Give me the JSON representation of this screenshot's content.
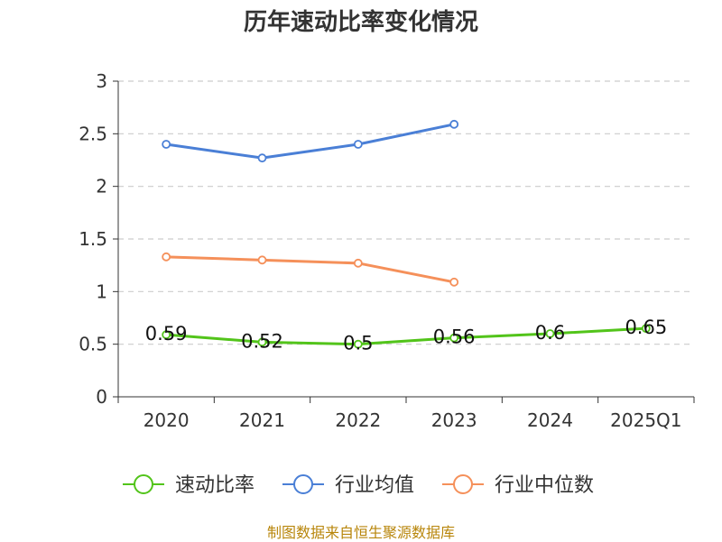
{
  "chart_data": {
    "type": "line",
    "title": "历年速动比率变化情况",
    "categories": [
      "2020",
      "2021",
      "2022",
      "2023",
      "2024",
      "2025Q1"
    ],
    "ylim": [
      0,
      3
    ],
    "yticks": [
      0,
      0.5,
      1,
      1.5,
      2,
      2.5,
      3
    ],
    "ytick_labels": [
      "0",
      "0.5",
      "1",
      "1.5",
      "2",
      "2.5",
      "3"
    ],
    "grid": true,
    "legend_position": "bottom",
    "series": [
      {
        "name": "速动比率",
        "color": "#52c41a",
        "values": [
          0.59,
          0.52,
          0.5,
          0.56,
          0.6,
          0.65
        ],
        "data_labels": [
          "0.59",
          "0.52",
          "0.5",
          "0.56",
          "0.6",
          "0.65"
        ]
      },
      {
        "name": "行业均值",
        "color": "#4a7fd6",
        "values": [
          2.4,
          2.27,
          2.4,
          2.59,
          null,
          null
        ]
      },
      {
        "name": "行业中位数",
        "color": "#f5905a",
        "values": [
          1.33,
          1.3,
          1.27,
          1.09,
          null,
          null
        ]
      }
    ]
  },
  "source_note": "制图数据来自恒生聚源数据库"
}
